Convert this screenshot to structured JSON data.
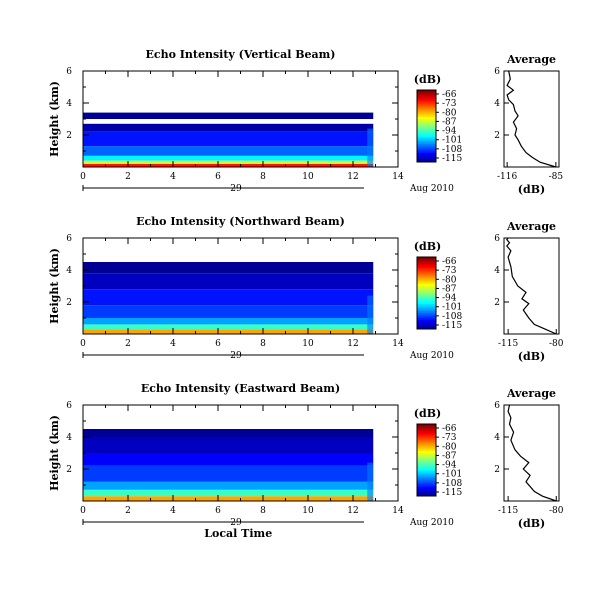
{
  "chart_data": [
    {
      "type": "heatmap",
      "title": "Echo Intensity (Vertical Beam)",
      "ylabel": "Height (km)",
      "xlim": [
        0,
        14
      ],
      "ylim": [
        0,
        6
      ],
      "x_ticks": [
        0,
        2,
        4,
        6,
        8,
        10,
        12,
        14
      ],
      "y_ticks": [
        2,
        4,
        6
      ],
      "date_day": "29",
      "date_label": "Aug 2010",
      "data_extent_x": [
        0,
        12.9
      ],
      "colorbar": {
        "label": "(dB)",
        "ticks": [
          -66,
          -73,
          -80,
          -87,
          -94,
          -101,
          -108,
          -115
        ]
      },
      "layers": [
        {
          "y0": 0.0,
          "y1": 0.2,
          "dB": -73
        },
        {
          "y0": 0.2,
          "y1": 0.4,
          "dB": -87
        },
        {
          "y0": 0.4,
          "y1": 0.7,
          "dB": -97
        },
        {
          "y0": 0.7,
          "y1": 1.3,
          "dB": -104
        },
        {
          "y0": 1.3,
          "y1": 2.2,
          "dB": -108
        },
        {
          "y0": 2.2,
          "y1": 2.7,
          "dB": -113
        },
        {
          "y0": 3.0,
          "y1": 3.4,
          "dB": -114
        }
      ],
      "average_profile": {
        "title": "Average",
        "xlabel": "(dB)",
        "x_ticks": [
          -116,
          -85
        ],
        "xlim": [
          -118,
          -83
        ],
        "ylim": [
          0,
          6
        ],
        "x": [
          -85,
          -95,
          -100,
          -104,
          -107,
          -109,
          -111,
          -110,
          -112,
          -109,
          -111,
          -112,
          -115,
          -116,
          -112,
          -116,
          -114,
          -115
        ],
        "y": [
          0,
          0.3,
          0.6,
          0.9,
          1.3,
          1.7,
          2.0,
          2.4,
          2.8,
          3.2,
          3.5,
          3.9,
          4.2,
          4.5,
          4.8,
          5.1,
          5.5,
          6.0
        ]
      }
    },
    {
      "type": "heatmap",
      "title": "Echo Intensity (Northward Beam)",
      "ylabel": "Height (km)",
      "xlim": [
        0,
        14
      ],
      "ylim": [
        0,
        6
      ],
      "x_ticks": [
        0,
        2,
        4,
        6,
        8,
        10,
        12,
        14
      ],
      "y_ticks": [
        2,
        4,
        6
      ],
      "date_day": "29",
      "date_label": "Aug 2010",
      "data_extent_x": [
        0,
        12.9
      ],
      "colorbar": {
        "label": "(dB)",
        "ticks": [
          -66,
          -73,
          -80,
          -87,
          -94,
          -101,
          -108,
          -115
        ]
      },
      "layers": [
        {
          "y0": 0.0,
          "y1": 0.3,
          "dB": -80
        },
        {
          "y0": 0.3,
          "y1": 0.6,
          "dB": -94
        },
        {
          "y0": 0.6,
          "y1": 1.0,
          "dB": -101
        },
        {
          "y0": 1.0,
          "y1": 1.8,
          "dB": -106
        },
        {
          "y0": 1.8,
          "y1": 2.8,
          "dB": -108
        },
        {
          "y0": 2.8,
          "y1": 3.8,
          "dB": -112
        },
        {
          "y0": 3.8,
          "y1": 4.5,
          "dB": -114
        }
      ],
      "average_profile": {
        "title": "Average",
        "xlabel": "(dB)",
        "x_ticks": [
          -115,
          -80
        ],
        "xlim": [
          -118,
          -78
        ],
        "ylim": [
          0,
          6
        ],
        "x": [
          -80,
          -88,
          -96,
          -100,
          -104,
          -100,
          -105,
          -102,
          -108,
          -112,
          -113,
          -115,
          -113,
          -116,
          -114,
          -116,
          -115
        ],
        "y": [
          0,
          0.3,
          0.6,
          1.0,
          1.5,
          1.9,
          2.2,
          2.6,
          3.0,
          3.6,
          4.2,
          4.8,
          5.2,
          5.5,
          5.7,
          5.9,
          6.0
        ]
      }
    },
    {
      "type": "heatmap",
      "title": "Echo Intensity (Eastward Beam)",
      "ylabel": "Height (km)",
      "xlabel": "Local Time",
      "xlim": [
        0,
        14
      ],
      "ylim": [
        0,
        6
      ],
      "x_ticks": [
        0,
        2,
        4,
        6,
        8,
        10,
        12,
        14
      ],
      "y_ticks": [
        2,
        4,
        6
      ],
      "date_day": "29",
      "date_label": "Aug 2010",
      "data_extent_x": [
        0,
        12.9
      ],
      "colorbar": {
        "label": "(dB)",
        "ticks": [
          -66,
          -73,
          -80,
          -87,
          -94,
          -101,
          -108,
          -115
        ]
      },
      "layers": [
        {
          "y0": 0.0,
          "y1": 0.3,
          "dB": -80
        },
        {
          "y0": 0.3,
          "y1": 0.7,
          "dB": -94
        },
        {
          "y0": 0.7,
          "y1": 1.2,
          "dB": -101
        },
        {
          "y0": 1.2,
          "y1": 2.2,
          "dB": -106
        },
        {
          "y0": 2.2,
          "y1": 3.0,
          "dB": -109
        },
        {
          "y0": 3.0,
          "y1": 4.0,
          "dB": -112
        },
        {
          "y0": 4.0,
          "y1": 4.5,
          "dB": -114
        }
      ],
      "average_profile": {
        "title": "Average",
        "xlabel": "(dB)",
        "x_ticks": [
          -115,
          -80
        ],
        "xlim": [
          -118,
          -78
        ],
        "ylim": [
          0,
          6
        ],
        "x": [
          -80,
          -90,
          -96,
          -102,
          -99,
          -104,
          -100,
          -106,
          -110,
          -113,
          -111,
          -114,
          -113,
          -115,
          -114
        ],
        "y": [
          0,
          0.3,
          0.6,
          1.2,
          1.6,
          2.0,
          2.4,
          2.8,
          3.2,
          3.8,
          4.3,
          4.8,
          5.2,
          5.6,
          6.0
        ]
      }
    }
  ]
}
